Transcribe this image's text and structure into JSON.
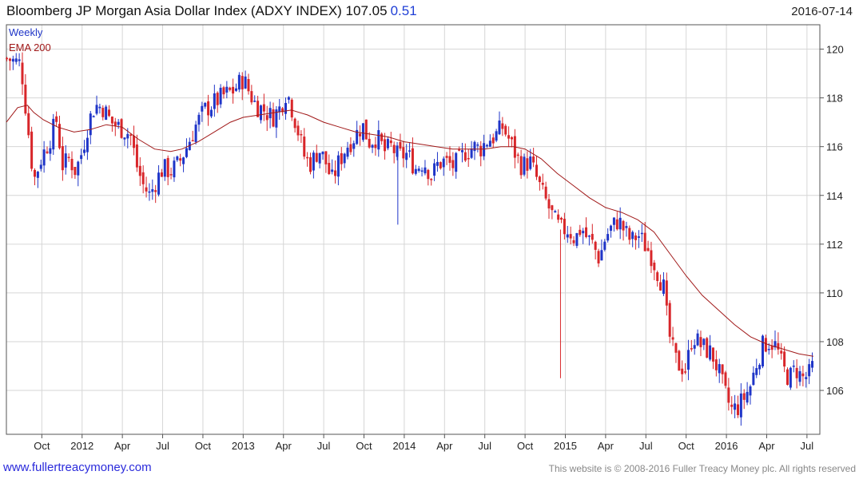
{
  "header": {
    "title": "Bloomberg JP Morgan Asia Dollar Index (ADXY INDEX) 107.05",
    "change": "0.51",
    "date": "2016-07-14"
  },
  "footer": {
    "site": "www.fullertreacymoney.com",
    "copyright": "This website is © 2008-2016 Fuller Treacy Money plc. All rights reserved"
  },
  "colors": {
    "up": "#1f35c8",
    "down": "#d8262a",
    "ema": "#a01818",
    "grid": "#d6d6d6"
  },
  "chart_data": {
    "type": "candlestick",
    "interval": "Weekly",
    "legend": [
      {
        "name": "Weekly",
        "color": "#1f35c8"
      },
      {
        "name": "EMA 200",
        "color": "#a01818"
      }
    ],
    "y_ticks": [
      106,
      108,
      110,
      112,
      114,
      116,
      118,
      120
    ],
    "ylim": [
      104.2,
      121
    ],
    "grid": true,
    "y_axis_side": "right",
    "x_range": [
      2011.53,
      2016.58
    ],
    "x_ticks": [
      {
        "label": "Oct",
        "x": 2011.75
      },
      {
        "label": "2012",
        "x": 2012.0
      },
      {
        "label": "Apr",
        "x": 2012.25
      },
      {
        "label": "Jul",
        "x": 2012.5
      },
      {
        "label": "Oct",
        "x": 2012.75
      },
      {
        "label": "2013",
        "x": 2013.0
      },
      {
        "label": "Apr",
        "x": 2013.25
      },
      {
        "label": "Jul",
        "x": 2013.5
      },
      {
        "label": "Oct",
        "x": 2013.75
      },
      {
        "label": "2014",
        "x": 2014.0
      },
      {
        "label": "Apr",
        "x": 2014.25
      },
      {
        "label": "Jul",
        "x": 2014.5
      },
      {
        "label": "Oct",
        "x": 2014.75
      },
      {
        "label": "2015",
        "x": 2015.0
      },
      {
        "label": "Apr",
        "x": 2015.25
      },
      {
        "label": "Jul",
        "x": 2015.5
      },
      {
        "label": "Oct",
        "x": 2015.75
      },
      {
        "label": "2016",
        "x": 2016.0
      },
      {
        "label": "Apr",
        "x": 2016.25
      },
      {
        "label": "Jul",
        "x": 2016.5
      }
    ],
    "close_path": [
      [
        2011.54,
        119.6
      ],
      [
        2011.62,
        119.4
      ],
      [
        2011.66,
        117.0
      ],
      [
        2011.7,
        114.6
      ],
      [
        2011.75,
        115.6
      ],
      [
        2011.8,
        116.3
      ],
      [
        2011.84,
        117.1
      ],
      [
        2011.88,
        115.2
      ],
      [
        2011.92,
        115.5
      ],
      [
        2011.96,
        115.0
      ],
      [
        2012.0,
        115.8
      ],
      [
        2012.04,
        117.0
      ],
      [
        2012.08,
        117.7
      ],
      [
        2012.13,
        117.6
      ],
      [
        2012.18,
        117.0
      ],
      [
        2012.23,
        116.8
      ],
      [
        2012.3,
        116.5
      ],
      [
        2012.34,
        115.2
      ],
      [
        2012.38,
        114.4
      ],
      [
        2012.42,
        114.0
      ],
      [
        2012.46,
        114.6
      ],
      [
        2012.5,
        115.1
      ],
      [
        2012.55,
        115.0
      ],
      [
        2012.6,
        115.3
      ],
      [
        2012.65,
        116.0
      ],
      [
        2012.7,
        116.8
      ],
      [
        2012.76,
        117.5
      ],
      [
        2012.82,
        117.8
      ],
      [
        2012.88,
        118.1
      ],
      [
        2012.94,
        118.3
      ],
      [
        2013.0,
        118.8
      ],
      [
        2013.04,
        118.2
      ],
      [
        2013.08,
        117.7
      ],
      [
        2013.13,
        117.5
      ],
      [
        2013.18,
        117.2
      ],
      [
        2013.23,
        117.6
      ],
      [
        2013.27,
        118.3
      ],
      [
        2013.31,
        117.4
      ],
      [
        2013.35,
        116.4
      ],
      [
        2013.38,
        115.6
      ],
      [
        2013.42,
        115.3
      ],
      [
        2013.47,
        115.9
      ],
      [
        2013.51,
        115.4
      ],
      [
        2013.55,
        114.6
      ],
      [
        2013.59,
        115.3
      ],
      [
        2013.64,
        116.0
      ],
      [
        2013.69,
        116.4
      ],
      [
        2013.74,
        116.9
      ],
      [
        2013.78,
        116.2
      ],
      [
        2013.83,
        116.4
      ],
      [
        2013.88,
        115.8
      ],
      [
        2013.92,
        116.0
      ],
      [
        2013.96,
        115.6
      ],
      [
        2014.02,
        115.7
      ],
      [
        2014.07,
        115.1
      ],
      [
        2014.12,
        115.4
      ],
      [
        2014.17,
        114.8
      ],
      [
        2014.21,
        115.3
      ],
      [
        2014.25,
        115.4
      ],
      [
        2014.3,
        115.2
      ],
      [
        2014.34,
        115.4
      ],
      [
        2014.38,
        115.8
      ],
      [
        2014.43,
        116.0
      ],
      [
        2014.47,
        115.9
      ],
      [
        2014.52,
        116.3
      ],
      [
        2014.56,
        116.4
      ],
      [
        2014.61,
        116.8
      ],
      [
        2014.65,
        116.3
      ],
      [
        2014.69,
        115.7
      ],
      [
        2014.73,
        115.2
      ],
      [
        2014.78,
        115.4
      ],
      [
        2014.81,
        114.9
      ],
      [
        2014.85,
        114.2
      ],
      [
        2014.89,
        113.6
      ],
      [
        2014.93,
        113.0
      ],
      [
        2014.97,
        112.6
      ],
      [
        2015.02,
        112.6
      ],
      [
        2015.06,
        112.2
      ],
      [
        2015.1,
        112.7
      ],
      [
        2015.13,
        112.3
      ],
      [
        2015.17,
        112.0
      ],
      [
        2015.21,
        111.4
      ],
      [
        2015.25,
        112.3
      ],
      [
        2015.29,
        112.7
      ],
      [
        2015.33,
        113.0
      ],
      [
        2015.37,
        112.5
      ],
      [
        2015.41,
        112.1
      ],
      [
        2015.45,
        112.4
      ],
      [
        2015.49,
        112.0
      ],
      [
        2015.53,
        111.6
      ],
      [
        2015.57,
        110.9
      ],
      [
        2015.61,
        110.2
      ],
      [
        2015.64,
        108.4
      ],
      [
        2015.68,
        107.3
      ],
      [
        2015.71,
        107.0
      ],
      [
        2015.75,
        106.9
      ],
      [
        2015.79,
        108.3
      ],
      [
        2015.83,
        107.9
      ],
      [
        2015.87,
        107.7
      ],
      [
        2015.91,
        107.5
      ],
      [
        2015.95,
        106.8
      ],
      [
        2015.99,
        105.9
      ],
      [
        2016.03,
        105.2
      ],
      [
        2016.07,
        105.3
      ],
      [
        2016.11,
        105.7
      ],
      [
        2016.15,
        106.2
      ],
      [
        2016.19,
        107.2
      ],
      [
        2016.23,
        107.9
      ],
      [
        2016.27,
        108.0
      ],
      [
        2016.31,
        107.8
      ],
      [
        2016.35,
        106.9
      ],
      [
        2016.39,
        106.5
      ],
      [
        2016.43,
        106.9
      ],
      [
        2016.47,
        106.5
      ],
      [
        2016.51,
        106.6
      ],
      [
        2016.54,
        107.05
      ]
    ],
    "ema_200": [
      [
        2011.53,
        117.0
      ],
      [
        2011.6,
        117.6
      ],
      [
        2011.66,
        117.7
      ],
      [
        2011.7,
        117.4
      ],
      [
        2011.76,
        117.1
      ],
      [
        2011.85,
        116.8
      ],
      [
        2011.95,
        116.6
      ],
      [
        2012.05,
        116.7
      ],
      [
        2012.15,
        116.9
      ],
      [
        2012.25,
        116.8
      ],
      [
        2012.35,
        116.3
      ],
      [
        2012.45,
        115.9
      ],
      [
        2012.55,
        115.8
      ],
      [
        2012.62,
        115.9
      ],
      [
        2012.72,
        116.2
      ],
      [
        2012.82,
        116.6
      ],
      [
        2012.92,
        117.0
      ],
      [
        2013.0,
        117.2
      ],
      [
        2013.1,
        117.3
      ],
      [
        2013.2,
        117.4
      ],
      [
        2013.3,
        117.5
      ],
      [
        2013.4,
        117.3
      ],
      [
        2013.5,
        117.0
      ],
      [
        2013.6,
        116.8
      ],
      [
        2013.7,
        116.6
      ],
      [
        2013.8,
        116.5
      ],
      [
        2013.9,
        116.4
      ],
      [
        2014.0,
        116.2
      ],
      [
        2014.1,
        116.1
      ],
      [
        2014.2,
        116.0
      ],
      [
        2014.3,
        115.9
      ],
      [
        2014.4,
        115.9
      ],
      [
        2014.5,
        115.9
      ],
      [
        2014.6,
        116.0
      ],
      [
        2014.68,
        116.0
      ],
      [
        2014.75,
        115.9
      ],
      [
        2014.85,
        115.5
      ],
      [
        2014.95,
        114.9
      ],
      [
        2015.05,
        114.4
      ],
      [
        2015.15,
        113.9
      ],
      [
        2015.25,
        113.5
      ],
      [
        2015.35,
        113.3
      ],
      [
        2015.45,
        113.0
      ],
      [
        2015.55,
        112.5
      ],
      [
        2015.65,
        111.6
      ],
      [
        2015.75,
        110.7
      ],
      [
        2015.85,
        109.9
      ],
      [
        2015.95,
        109.3
      ],
      [
        2016.05,
        108.7
      ],
      [
        2016.15,
        108.2
      ],
      [
        2016.25,
        107.9
      ],
      [
        2016.35,
        107.7
      ],
      [
        2016.45,
        107.5
      ],
      [
        2016.54,
        107.4
      ]
    ],
    "spikes": [
      {
        "x": 2013.96,
        "high": 116.0,
        "low": 112.8
      },
      {
        "x": 2014.97,
        "high": 112.6,
        "low": 106.5
      }
    ]
  }
}
